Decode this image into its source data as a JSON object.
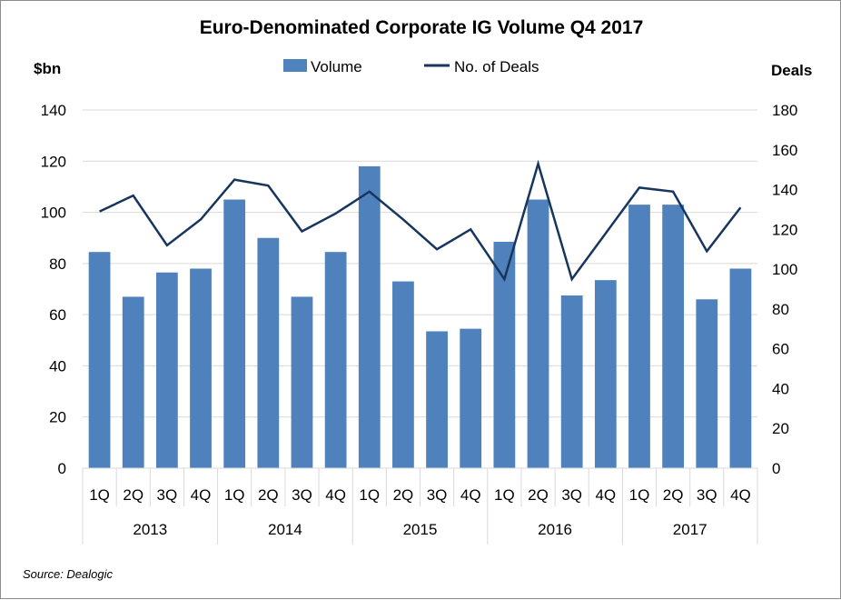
{
  "chart_data": {
    "type": "bar+line",
    "title": "Euro-Denominated Corporate IG Volume Q4 2017",
    "left_axis_label": "$bn",
    "right_axis_label": "Deals",
    "left_ylim": [
      0,
      140
    ],
    "left_ticks": [
      "0",
      "20",
      "40",
      "60",
      "80",
      "100",
      "120",
      "140"
    ],
    "right_ylim": [
      0,
      180
    ],
    "right_ticks": [
      "0",
      "20",
      "40",
      "60",
      "80",
      "100",
      "120",
      "140",
      "160",
      "180"
    ],
    "grid": true,
    "legend_position": "top",
    "quarters": [
      "1Q",
      "2Q",
      "3Q",
      "4Q",
      "1Q",
      "2Q",
      "3Q",
      "4Q",
      "1Q",
      "2Q",
      "3Q",
      "4Q",
      "1Q",
      "2Q",
      "3Q",
      "4Q",
      "1Q",
      "2Q",
      "3Q",
      "4Q"
    ],
    "years": [
      "2013",
      "2014",
      "2015",
      "2016",
      "2017"
    ],
    "series": [
      {
        "name": "Volume",
        "type": "bar",
        "axis": "left",
        "color": "#4f81bd",
        "values": [
          84.5,
          67,
          76.5,
          78,
          105,
          90,
          67,
          84.5,
          118,
          73,
          53.5,
          54.5,
          88.5,
          105,
          67.5,
          73.5,
          103,
          103,
          66,
          78
        ]
      },
      {
        "name": "No. of Deals",
        "type": "line",
        "axis": "right",
        "color": "#17365d",
        "values": [
          129,
          137,
          112,
          125,
          145,
          142,
          119,
          128,
          139,
          125,
          110,
          120,
          95,
          153,
          95,
          118,
          141,
          139,
          109,
          131
        ]
      }
    ],
    "source": "Source: Dealogic"
  }
}
